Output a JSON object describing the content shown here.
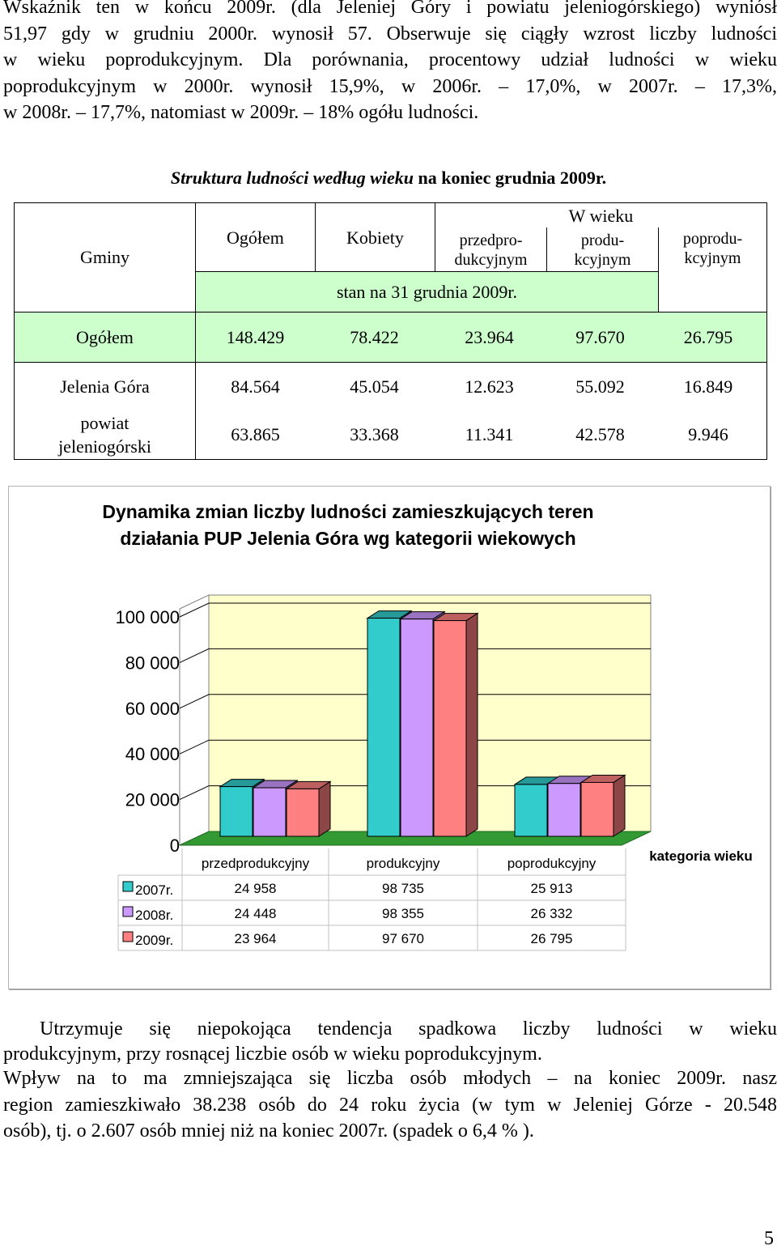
{
  "intro_lines": [
    "Wskaźnik ten w końcu 2009r. (dla Jeleniej Góry i powiatu jeleniogórskiego) wyniósł",
    "51,97 gdy w grudniu 2000r. wynosił 57. Obserwuje się ciągły wzrost liczby ludności",
    "w wieku poprodukcyjnym. Dla porównania, procentowy udział ludności w wieku",
    "poprodukcyjnym w 2000r. wynosił 15,9%, w 2006r. – 17,0%, w 2007r. – 17,3%,",
    "w 2008r. – 17,7%, natomiast w 2009r. – 18% ogółu ludności."
  ],
  "table": {
    "caption_italic": "Struktura ludności według wieku",
    "caption_rest": " na koniec grudnia 2009r.",
    "col_gminy": "Gminy",
    "col_ogolem": "Ogółem",
    "col_kobiety": "Kobiety",
    "col_w_wieku": "W wieku",
    "col_przed_1": "przedpro-",
    "col_przed_2": "dukcyjnym",
    "col_prod_1": "produ-",
    "col_prod_2": "kcyjnym",
    "col_popr_1": "poprodu-",
    "col_popr_2": "kcyjnym",
    "stan": "stan na 31 grudnia 2009r.",
    "rows": [
      {
        "name": "Ogółem",
        "ogolem": "148.429",
        "kobiety": "78.422",
        "przed": "23.964",
        "prod": "97.670",
        "popr": "26.795"
      },
      {
        "name": "Jelenia Góra",
        "ogolem": "84.564",
        "kobiety": "45.054",
        "przed": "12.623",
        "prod": "55.092",
        "popr": "16.849"
      },
      {
        "name_1": "powiat",
        "name_2": "jeleniogórski",
        "ogolem": "63.865",
        "kobiety": "33.368",
        "przed": "11.341",
        "prod": "42.578",
        "popr": "9.946"
      }
    ]
  },
  "chart_title_1": "Dynamika zmian liczby ludności zamieszkujących teren",
  "chart_title_2": "działania PUP Jelenia Góra wg kategorii wiekowych",
  "chart_data": {
    "type": "bar",
    "categories": [
      "przedprodukcyjny",
      "produkcyjny",
      "poprodukcyjny"
    ],
    "series": [
      {
        "name": "2007r.",
        "color": "#33cccc",
        "values": [
          24958,
          98735,
          25913
        ],
        "labels": [
          "24 958",
          "98 735",
          "25 913"
        ]
      },
      {
        "name": "2008r.",
        "color": "#cc99ff",
        "values": [
          24448,
          98355,
          26332
        ],
        "labels": [
          "24 448",
          "98 355",
          "26 332"
        ]
      },
      {
        "name": "2009r.",
        "color": "#ff8080",
        "values": [
          23964,
          97670,
          26795
        ],
        "labels": [
          "23 964",
          "97 670",
          "26 795"
        ]
      }
    ],
    "y_ticks": [
      "0",
      "20 000",
      "40 000",
      "60 000",
      "80 000",
      "100 000"
    ],
    "y_tick_values": [
      0,
      20000,
      40000,
      60000,
      80000,
      100000
    ],
    "ylim": [
      0,
      100000
    ],
    "xlabel": "kategoria wieku",
    "ylabel": "",
    "style": "3d-column-with-data-table",
    "wall_color": "#ffffcc",
    "floor_color": "#339933"
  },
  "outro": {
    "line1": "Utrzymuje się niepokojąca tendencja spadkowa liczby ludności w wieku",
    "line2": "produkcyjnym, przy rosnącej liczbie osób w wieku poprodukcyjnym.",
    "line3": "Wpływ na to ma zmniejszająca się liczba osób młodych – na koniec 2009r. nasz",
    "line4": "region zamieszkiwało 38.238 osób do 24 roku życia (w tym w Jeleniej Górze - 20.548",
    "line5": "osób), tj. o 2.607 osób mniej niż na koniec 2007r. (spadek o 6,4 % )."
  },
  "page_number": "5"
}
